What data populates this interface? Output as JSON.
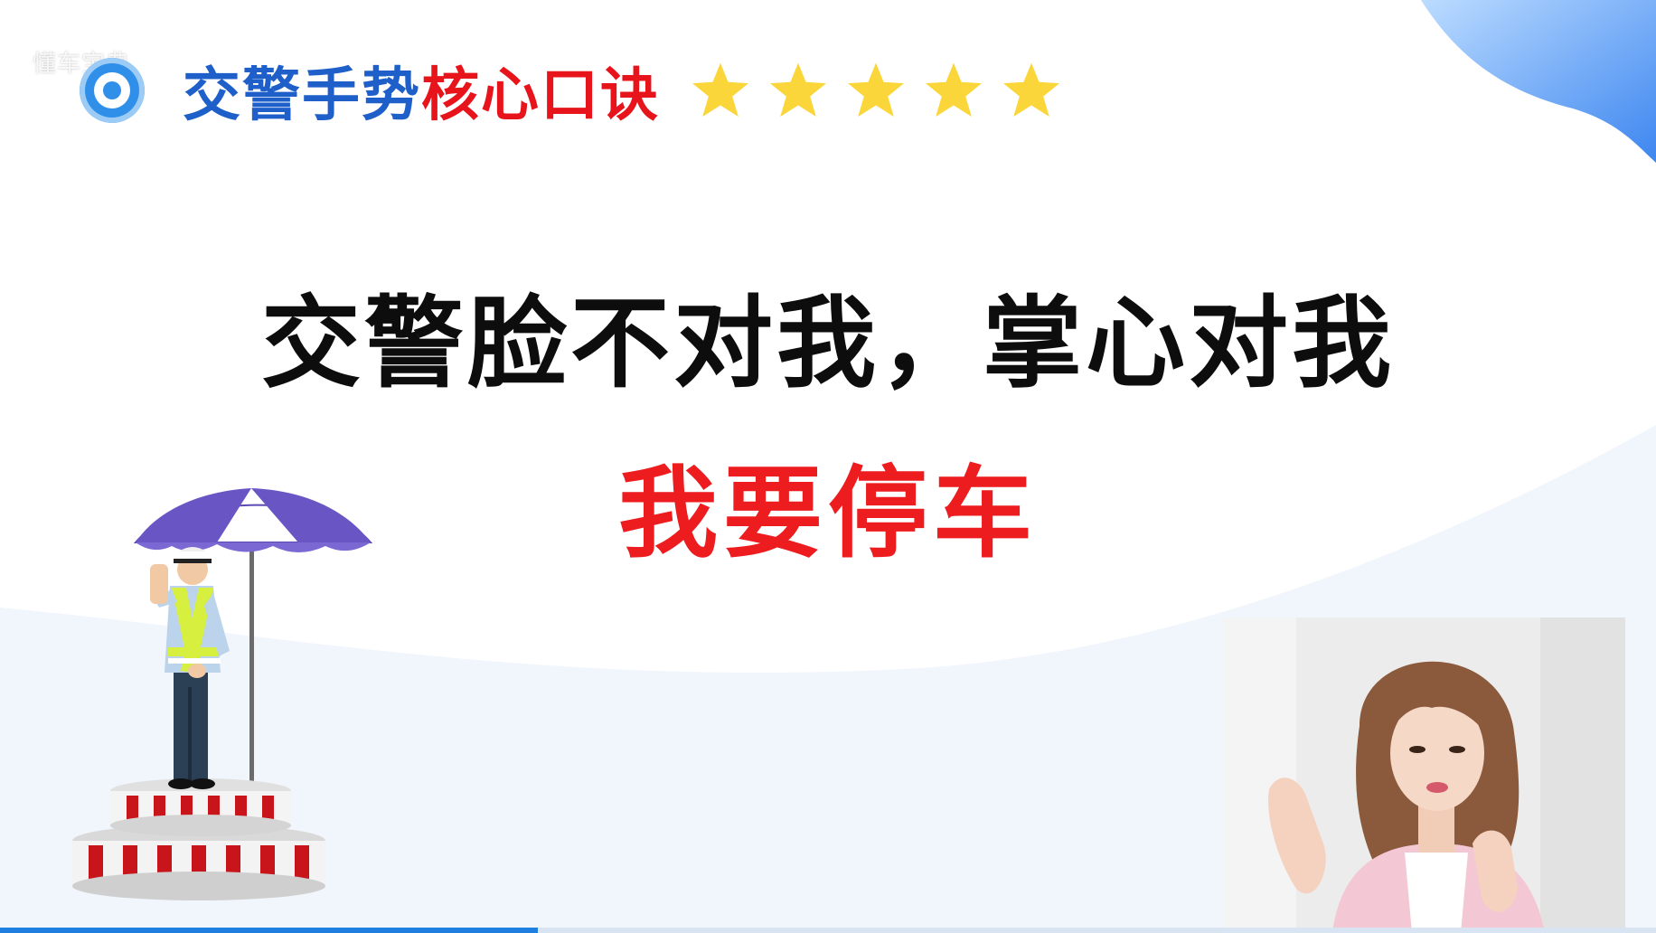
{
  "watermark": "懂车宝典",
  "header": {
    "title_blue": "交警手势",
    "title_red": "核心口诀",
    "rating": {
      "value": 5,
      "max": 5
    }
  },
  "main": {
    "line1": "交警脸不对我，掌心对我",
    "line2": "我要停车"
  },
  "colors": {
    "blue": "#1e5fc9",
    "red": "#e8141b",
    "star": "#fbd63a",
    "accent": "#2f8fe9"
  },
  "progress": {
    "fraction": 0.325
  }
}
